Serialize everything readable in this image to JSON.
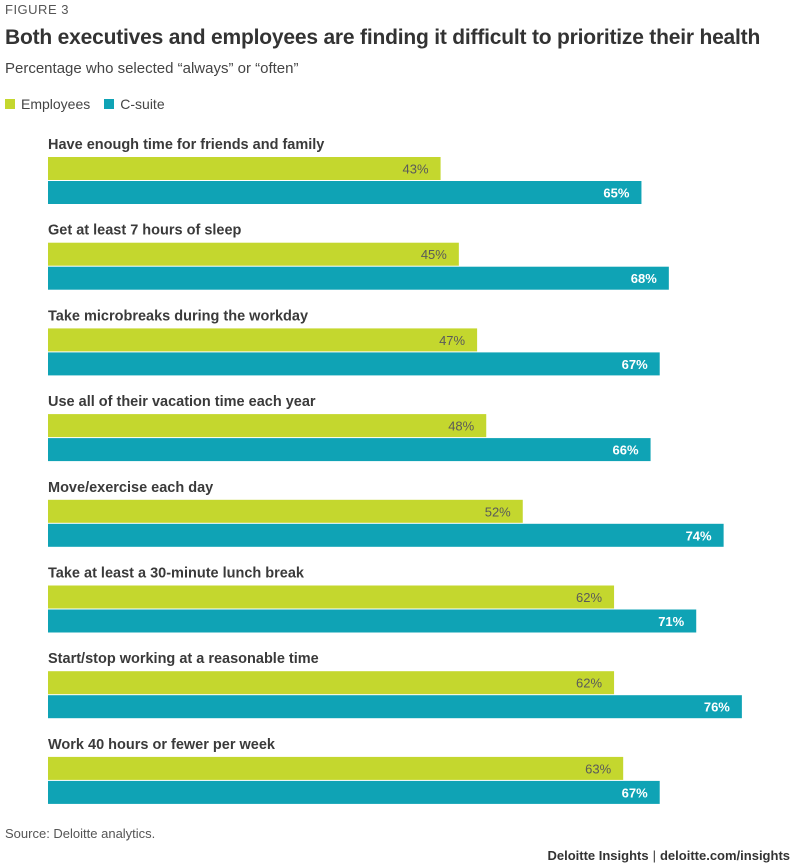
{
  "figure_label": "FIGURE 3",
  "title": "Both executives and employees are finding it difficult to prioritize their health",
  "subtitle": "Percentage who selected “always” or “often”",
  "colors": {
    "employees": "#c4d72e",
    "csuite": "#0fa3b5",
    "employees_label": "#5a5a5a",
    "csuite_label": "#ffffff"
  },
  "source": "Source: Deloitte analytics.",
  "footer": {
    "brand": "Deloitte Insights",
    "separator": "|",
    "site": "deloitte.com/insights"
  },
  "chart_data": {
    "type": "bar",
    "orientation": "horizontal",
    "categories": [
      "Have enough time for friends and family",
      "Get at least 7 hours of sleep",
      "Take microbreaks during the workday",
      "Use all of their vacation time each year",
      "Move/exercise each day",
      "Take at least a 30-minute lunch break",
      "Start/stop working at a reasonable time",
      "Work 40 hours or fewer per week"
    ],
    "series": [
      {
        "name": "Employees",
        "values": [
          43,
          45,
          47,
          48,
          52,
          62,
          62,
          63
        ],
        "labels": [
          "43%",
          "45%",
          "47%",
          "48%",
          "52%",
          "62%",
          "62%",
          "63%"
        ]
      },
      {
        "name": "C-suite",
        "values": [
          65,
          68,
          67,
          66,
          74,
          71,
          76,
          67
        ],
        "labels": [
          "65%",
          "68%",
          "67%",
          "66%",
          "74%",
          "71%",
          "76%",
          "67%"
        ]
      }
    ],
    "xlim": [
      0,
      100
    ],
    "legend": "top-left",
    "grid": false
  }
}
